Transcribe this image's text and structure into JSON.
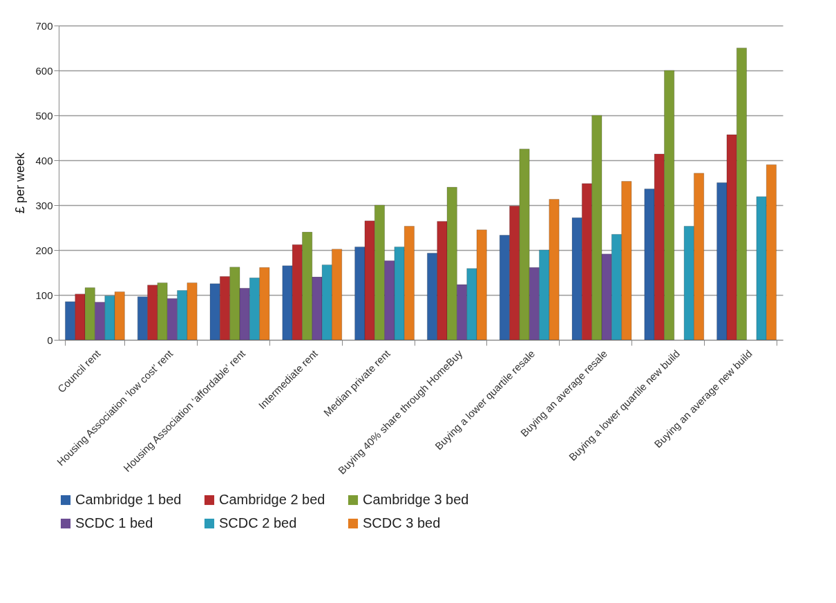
{
  "chart_data": {
    "type": "bar",
    "ylabel": "£ per week",
    "categories": [
      "Council rent",
      "Housing Association ‘low cost’ rent",
      "Housing Association ‘affordable’ rent",
      "Intermediate rent",
      "Median private rent",
      "Buying 40% share through HomeBuy",
      "Buying a lower quartile resale",
      "Buying an average resale",
      "Buying a lower quartile new build",
      "Buying an average new build"
    ],
    "series": [
      {
        "name": "Cambridge 1 bed",
        "color": "#2e62a6",
        "values": [
          85,
          96,
          125,
          165,
          207,
          193,
          233,
          272,
          336,
          350
        ]
      },
      {
        "name": "Cambridge 2 bed",
        "color": "#b52b2d",
        "values": [
          102,
          122,
          141,
          212,
          265,
          264,
          298,
          348,
          414,
          457
        ]
      },
      {
        "name": "Cambridge 3 bed",
        "color": "#7d9c34",
        "values": [
          116,
          127,
          162,
          240,
          300,
          340,
          425,
          500,
          600,
          650
        ]
      },
      {
        "name": "SCDC 1 bed",
        "color": "#6b4b93",
        "values": [
          84,
          92,
          115,
          140,
          176,
          123,
          161,
          191,
          null,
          null
        ]
      },
      {
        "name": "SCDC 2 bed",
        "color": "#2a9bb8",
        "values": [
          98,
          110,
          138,
          167,
          207,
          159,
          200,
          235,
          253,
          319
        ]
      },
      {
        "name": "SCDC 3 bed",
        "color": "#e47c1f",
        "values": [
          107,
          127,
          161,
          202,
          253,
          245,
          313,
          353,
          371,
          390
        ]
      }
    ],
    "ylim": [
      0,
      700
    ],
    "yticks": [
      0,
      100,
      200,
      300,
      400,
      500,
      600,
      700
    ],
    "grid": "y",
    "legend": "bottom"
  }
}
